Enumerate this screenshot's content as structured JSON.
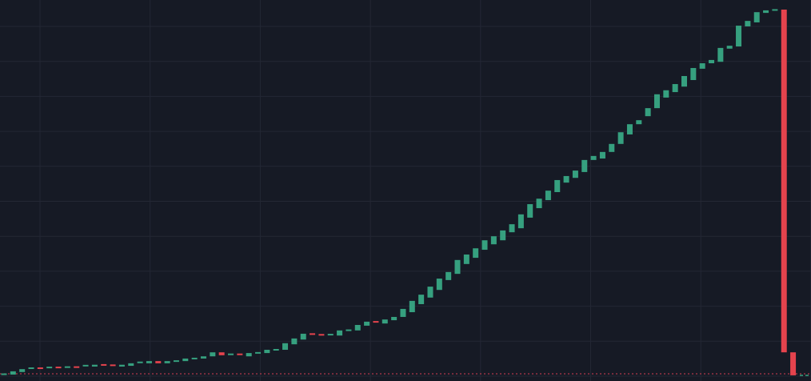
{
  "chart_data": {
    "type": "candlestick",
    "title": "",
    "xlabel": "",
    "ylabel": "",
    "ylim": [
      0,
      100
    ],
    "grid": true,
    "legend": "none",
    "baseline_value": 0,
    "colors": {
      "background": "#161a25",
      "grid": "#232734",
      "up": "#36a07f",
      "down": "#e5434d",
      "baseline": "#b0384a"
    },
    "candles": [
      [
        0,
        0.2
      ],
      [
        0,
        0.9
      ],
      [
        0.7,
        1.5
      ],
      [
        1.7,
        1.8
      ],
      [
        1.8,
        1.7
      ],
      [
        1.9,
        2.0
      ],
      [
        2.0,
        1.9
      ],
      [
        2.0,
        2.1
      ],
      [
        2.1,
        2.0
      ],
      [
        2.4,
        2.5
      ],
      [
        2.2,
        2.7
      ],
      [
        2.7,
        2.6
      ],
      [
        2.6,
        2.5
      ],
      [
        2.2,
        2.7
      ],
      [
        2.4,
        3.1
      ],
      [
        3.3,
        3.4
      ],
      [
        3.1,
        3.7
      ],
      [
        3.7,
        3.1
      ],
      [
        3.1,
        3.7
      ],
      [
        3.5,
        3.9
      ],
      [
        3.7,
        4.4
      ],
      [
        4.2,
        4.6
      ],
      [
        4.4,
        5.0
      ],
      [
        5.0,
        6.1
      ],
      [
        6.1,
        5.3
      ],
      [
        5.5,
        5.6
      ],
      [
        5.6,
        5.5
      ],
      [
        5.0,
        5.9
      ],
      [
        5.9,
        6.0
      ],
      [
        5.9,
        6.8
      ],
      [
        6.6,
        7.0
      ],
      [
        6.8,
        8.6
      ],
      [
        8.3,
        9.9
      ],
      [
        9.6,
        11.2
      ],
      [
        11.2,
        11.0
      ],
      [
        11.0,
        10.8
      ],
      [
        10.9,
        11.0
      ],
      [
        10.7,
        12.1
      ],
      [
        12.1,
        12.2
      ],
      [
        12.1,
        13.6
      ],
      [
        13.4,
        14.5
      ],
      [
        14.5,
        14.4
      ],
      [
        14.0,
        15.1
      ],
      [
        14.9,
        15.8
      ],
      [
        15.8,
        18.0
      ],
      [
        17.1,
        20.2
      ],
      [
        19.3,
        21.9
      ],
      [
        21.1,
        24.1
      ],
      [
        23.2,
        26.3
      ],
      [
        25.9,
        28.1
      ],
      [
        27.6,
        31.4
      ],
      [
        30.3,
        32.9
      ],
      [
        32.0,
        34.6
      ],
      [
        34.2,
        36.8
      ],
      [
        35.7,
        37.9
      ],
      [
        36.8,
        39.5
      ],
      [
        39.0,
        41.2
      ],
      [
        40.1,
        43.9
      ],
      [
        43.0,
        46.7
      ],
      [
        45.6,
        48.2
      ],
      [
        47.8,
        50.4
      ],
      [
        50.0,
        53.3
      ],
      [
        52.6,
        54.4
      ],
      [
        53.9,
        55.9
      ],
      [
        55.5,
        58.8
      ],
      [
        58.8,
        59.9
      ],
      [
        59.2,
        61.0
      ],
      [
        61.0,
        63.2
      ],
      [
        63.2,
        66.4
      ],
      [
        65.8,
        68.6
      ],
      [
        68.6,
        69.7
      ],
      [
        70.8,
        73.0
      ],
      [
        73.0,
        76.8
      ],
      [
        75.9,
        77.9
      ],
      [
        77.4,
        79.6
      ],
      [
        78.9,
        81.8
      ],
      [
        80.7,
        84.0
      ],
      [
        83.8,
        85.3
      ],
      [
        85.3,
        86.2
      ],
      [
        85.7,
        89.5
      ],
      [
        89.3,
        90.1
      ],
      [
        89.9,
        95.6
      ],
      [
        95.4,
        96.9
      ],
      [
        96.5,
        99.3
      ],
      [
        99.1,
        99.8
      ],
      [
        99.8,
        100
      ],
      [
        100,
        6.1
      ],
      [
        6.1,
        -0.2
      ]
    ]
  }
}
